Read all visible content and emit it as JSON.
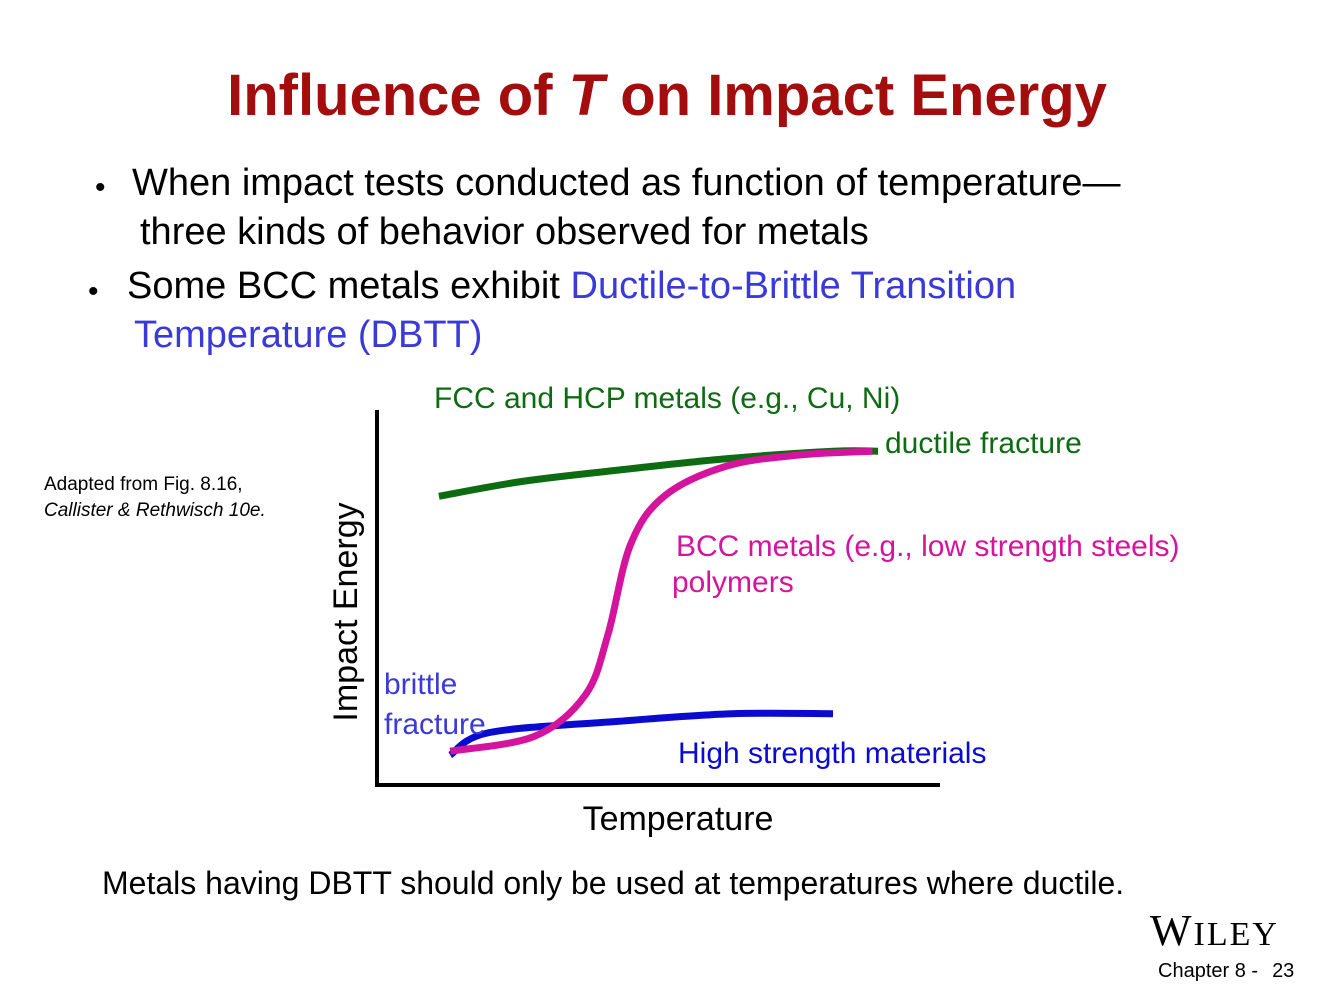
{
  "slide": {
    "title_before": "Influence of ",
    "title_italic": "T",
    "title_after": " on Impact Energy",
    "bullet1_line1": "When impact tests conducted as function of temperature—",
    "bullet1_line2": "three kinds of behavior observed for metals",
    "bullet2_text": "Some BCC metals exhibit ",
    "bullet2_highlight1": "Ductile-to-Brittle Transition",
    "bullet2_highlight2": "Temperature (DBTT)",
    "credit_line1": "Adapted from Fig. 8.16,",
    "credit_line2": "Callister & Rethwisch  10e.",
    "bottom_note": "Metals having DBTT should only be used at temperatures where ductile.",
    "publisher_first": "W",
    "publisher_rest": "ILEY",
    "footer_chapter": "Chapter 8 -",
    "footer_page": "23"
  },
  "colors": {
    "title": "#a30d0d",
    "fcc": "#0d6b12",
    "bcc": "#d4149c",
    "high_strength": "#0b0bd0",
    "brittle_label": "#3a3ad8"
  },
  "chart_data": {
    "type": "line",
    "xlabel": "Temperature",
    "ylabel": "Impact Energy",
    "xlim": [
      0,
      100
    ],
    "ylim": [
      0,
      100
    ],
    "ticks": "none",
    "grid": false,
    "series": [
      {
        "name": "FCC and HCP metals (e.g., Cu, Ni)",
        "x": [
          11,
          26,
          43,
          62,
          81,
          89
        ],
        "y": [
          77,
          81,
          84,
          87,
          89,
          89
        ]
      },
      {
        "name": "BCC metals (e.g., low strength steels)",
        "x": [
          13,
          28,
          37,
          41,
          45,
          51,
          62,
          75,
          88
        ],
        "y": [
          9,
          13,
          24,
          40,
          64,
          77,
          85,
          88,
          89
        ]
      },
      {
        "name": "High strength materials",
        "x": [
          13,
          20,
          43,
          63,
          81
        ],
        "y": [
          8,
          14,
          17,
          19,
          19
        ]
      }
    ],
    "annotations": {
      "fcc_label": "FCC and HCP metals (e.g., Cu, Ni)",
      "ductile_label": "ductile fracture",
      "bcc_label": "BCC metals (e.g., low strength steels)",
      "bcc_label2": "polymers",
      "brittle_label1": "brittle",
      "brittle_label2": "fracture",
      "high_strength_label": "High strength materials"
    }
  }
}
